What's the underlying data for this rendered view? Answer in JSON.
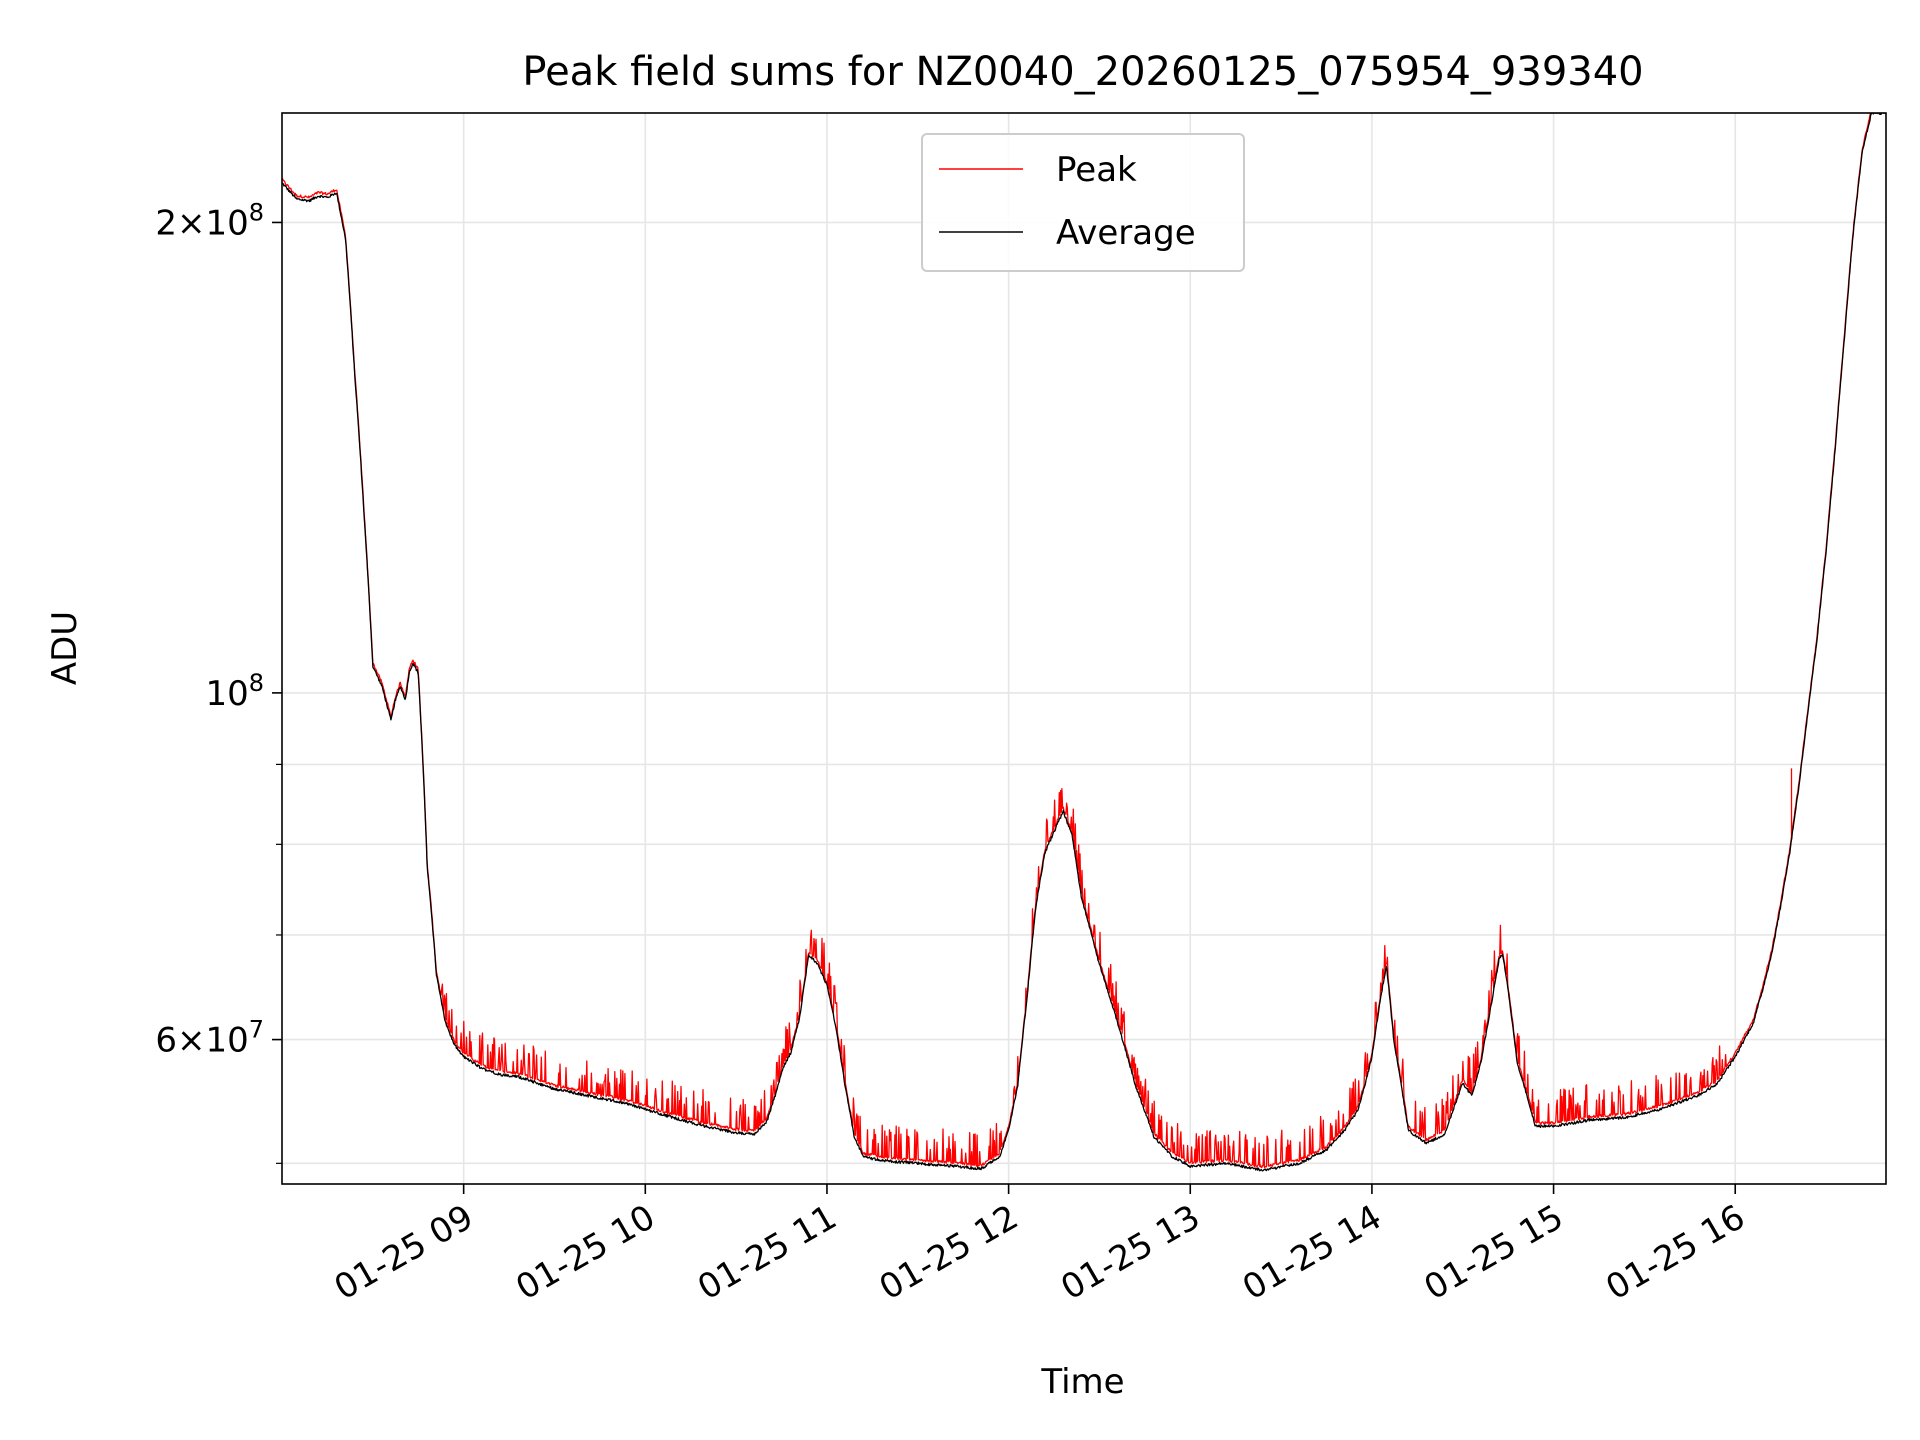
{
  "chart_data": {
    "type": "line",
    "title": "Peak field sums for NZ0040_20260125_075954_939340",
    "xlabel": "Time",
    "ylabel": "ADU",
    "yscale": "log",
    "ylim": [
      48500000,
      235000000
    ],
    "xlim_hours": [
      8.0,
      16.83
    ],
    "grid": true,
    "legend_position": "upper center",
    "x_ticks": [
      {
        "hour": 9,
        "label": "01-25 09"
      },
      {
        "hour": 10,
        "label": "01-25 10"
      },
      {
        "hour": 11,
        "label": "01-25 11"
      },
      {
        "hour": 12,
        "label": "01-25 12"
      },
      {
        "hour": 13,
        "label": "01-25 13"
      },
      {
        "hour": 14,
        "label": "01-25 14"
      },
      {
        "hour": 15,
        "label": "01-25 15"
      },
      {
        "hour": 16,
        "label": "01-25 16"
      }
    ],
    "y_major_ticks": [
      {
        "value": 60000000,
        "base": "6",
        "exp": "7",
        "prefix": true
      },
      {
        "value": 100000000,
        "base": "10",
        "exp": "8",
        "prefix": false
      },
      {
        "value": 200000000,
        "base": "2",
        "exp": "8",
        "prefix": true
      }
    ],
    "y_minor_ticks": [
      50000000,
      70000000,
      80000000,
      90000000
    ],
    "series": [
      {
        "name": "Peak",
        "color": "#ff0000"
      },
      {
        "name": "Average",
        "color": "#000000"
      }
    ],
    "x": [
      8.0,
      8.08,
      8.15,
      8.2,
      8.25,
      8.3,
      8.35,
      8.4,
      8.45,
      8.5,
      8.55,
      8.6,
      8.62,
      8.65,
      8.68,
      8.7,
      8.72,
      8.75,
      8.78,
      8.8,
      8.82,
      8.85,
      8.9,
      8.95,
      9.0,
      9.1,
      9.2,
      9.3,
      9.5,
      9.7,
      9.9,
      10.1,
      10.3,
      10.5,
      10.6,
      10.67,
      10.72,
      10.76,
      10.8,
      10.85,
      10.9,
      10.95,
      11.0,
      11.05,
      11.1,
      11.15,
      11.2,
      11.3,
      11.5,
      11.7,
      11.85,
      11.95,
      12.0,
      12.05,
      12.1,
      12.15,
      12.2,
      12.25,
      12.3,
      12.35,
      12.4,
      12.5,
      12.6,
      12.7,
      12.8,
      12.9,
      13.0,
      13.2,
      13.4,
      13.6,
      13.75,
      13.85,
      13.92,
      13.96,
      14.0,
      14.05,
      14.08,
      14.12,
      14.2,
      14.3,
      14.4,
      14.45,
      14.5,
      14.55,
      14.6,
      14.65,
      14.7,
      14.72,
      14.75,
      14.8,
      14.9,
      15.0,
      15.2,
      15.4,
      15.6,
      15.8,
      15.9,
      16.0,
      16.1,
      16.15,
      16.2,
      16.25,
      16.3,
      16.35,
      16.4,
      16.45,
      16.5,
      16.55,
      16.6,
      16.65,
      16.7,
      16.75,
      16.83
    ],
    "avg": [
      212000000,
      207000000,
      206500000,
      208000000,
      207500000,
      209000000,
      195000000,
      160000000,
      131000000,
      104000000,
      101000000,
      96000000,
      98500000,
      101000000,
      99000000,
      103000000,
      104500000,
      103000000,
      88000000,
      77000000,
      73000000,
      66000000,
      61500000,
      59500000,
      58500000,
      57500000,
      57000000,
      56800000,
      55800000,
      55200000,
      54600000,
      53700000,
      52900000,
      52300000,
      52200000,
      53200000,
      55500000,
      57600000,
      58800000,
      62000000,
      68000000,
      67000000,
      65000000,
      61000000,
      56000000,
      52000000,
      50500000,
      50200000,
      50000000,
      49800000,
      49600000,
      50500000,
      52500000,
      56000000,
      63500000,
      73000000,
      79000000,
      81500000,
      84000000,
      81000000,
      74000000,
      67000000,
      61500000,
      56000000,
      52000000,
      50500000,
      49800000,
      50000000,
      49500000,
      50000000,
      51000000,
      52500000,
      54000000,
      56000000,
      58500000,
      64000000,
      67000000,
      60000000,
      52500000,
      51500000,
      52200000,
      54200000,
      56300000,
      55200000,
      58000000,
      62500000,
      67500000,
      68000000,
      64500000,
      58000000,
      52800000,
      52800000,
      53300000,
      53500000,
      54200000,
      55300000,
      56200000,
      58500000,
      61500000,
      64500000,
      68000000,
      73000000,
      79000000,
      87000000,
      97000000,
      108000000,
      123000000,
      143000000,
      168000000,
      197000000,
      222000000,
      235000000,
      235000000
    ]
  }
}
